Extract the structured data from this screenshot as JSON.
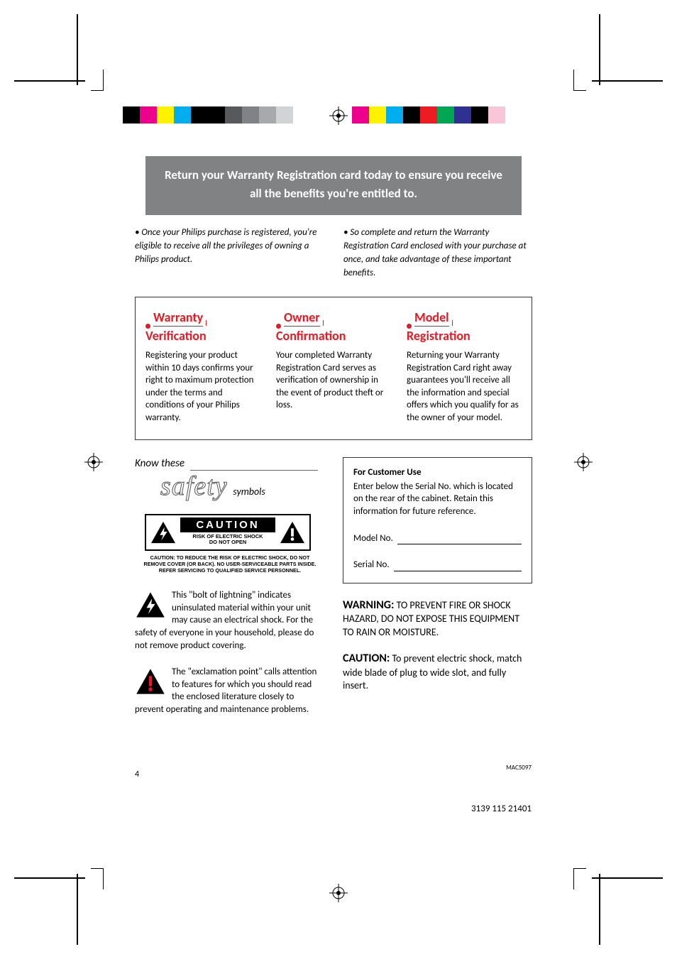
{
  "crop_marks": true,
  "color_bar_left": [
    "#000000",
    "#ec008c",
    "#fff200",
    "#00aeef",
    "#000000",
    "#000000",
    "#58595b",
    "#808285",
    "#a7a9ac",
    "#d1d3d4",
    "#ffffff"
  ],
  "color_bar_right": [
    "#ec008c",
    "#fff200",
    "#00aeef",
    "#000000",
    "#ed1c24",
    "#00a651",
    "#2e3192",
    "#000000",
    "#f9c6d8",
    "#ffffff"
  ],
  "banner": "Return your Warranty Registration card today to ensure you receive all the benefits you're entitled to.",
  "intro": {
    "left": "• Once your Philips purchase is registered, you're eligible to receive all the privileges of owning a Philips product.",
    "right": "• So complete and return the Warranty Registration Card enclosed with your purchase at once, and take advantage of these important benefits."
  },
  "benefits": [
    {
      "title_top": "Warranty",
      "title_bottom": "Verification",
      "body": "Registering your product within 10 days confirms your right to maximum protection under the terms and conditions of your Philips warranty."
    },
    {
      "title_top": "Owner",
      "title_bottom": "Confirmation",
      "body": "Your completed Warranty Registration Card serves as verification of ownership in the event of product theft or loss."
    },
    {
      "title_top": "Model",
      "title_bottom": "Registration",
      "body": "Returning your Warranty Registration Card right away guarantees you'll receive all the information and special offers which you qualify for as the owner of your model."
    }
  ],
  "safety": {
    "know_these": "Know these",
    "safety_word": "safety",
    "symbols_label": "symbols",
    "caution_title": "CAUTION",
    "caution_sub1": "RISK OF ELECTRIC SHOCK",
    "caution_sub2": "DO NOT OPEN",
    "caution_foot": "CAUTION: TO REDUCE THE RISK OF ELECTRIC SHOCK, DO NOT REMOVE COVER (OR BACK). NO USER-SERVICEABLE PARTS INSIDE. REFER SERVICING TO QUALIFIED SERVICE PERSONNEL.",
    "bolt_para": "This \"bolt of lightning\" indicates uninsulated material within your unit may cause an electrical shock. For the safety of everyone in your household, please do not remove product covering.",
    "excl_para": "The \"exclamation point\" calls attention to features for which you should read the enclosed literature closely to prevent operating and maintenance problems."
  },
  "customer": {
    "heading": "For Customer Use",
    "body": "Enter below the Serial No. which is located on the rear of the cabinet. Retain this information for future reference.",
    "model_label": "Model No.",
    "serial_label": "Serial No."
  },
  "warning": {
    "lead": "WARNING:",
    "body": " TO PREVENT FIRE OR SHOCK HAZARD, DO NOT EXPOSE THIS EQUIPMENT TO RAIN OR MOISTURE."
  },
  "caution_text": {
    "lead": "CAUTION:",
    "body": " To prevent electric shock, match wide blade of plug to wide slot, and fully insert."
  },
  "page_number": "4",
  "mac_code": "MAC5097",
  "doc_code": "3139 115 21401",
  "colors": {
    "accent_red": "#e31b23",
    "banner_gray": "#818284"
  }
}
